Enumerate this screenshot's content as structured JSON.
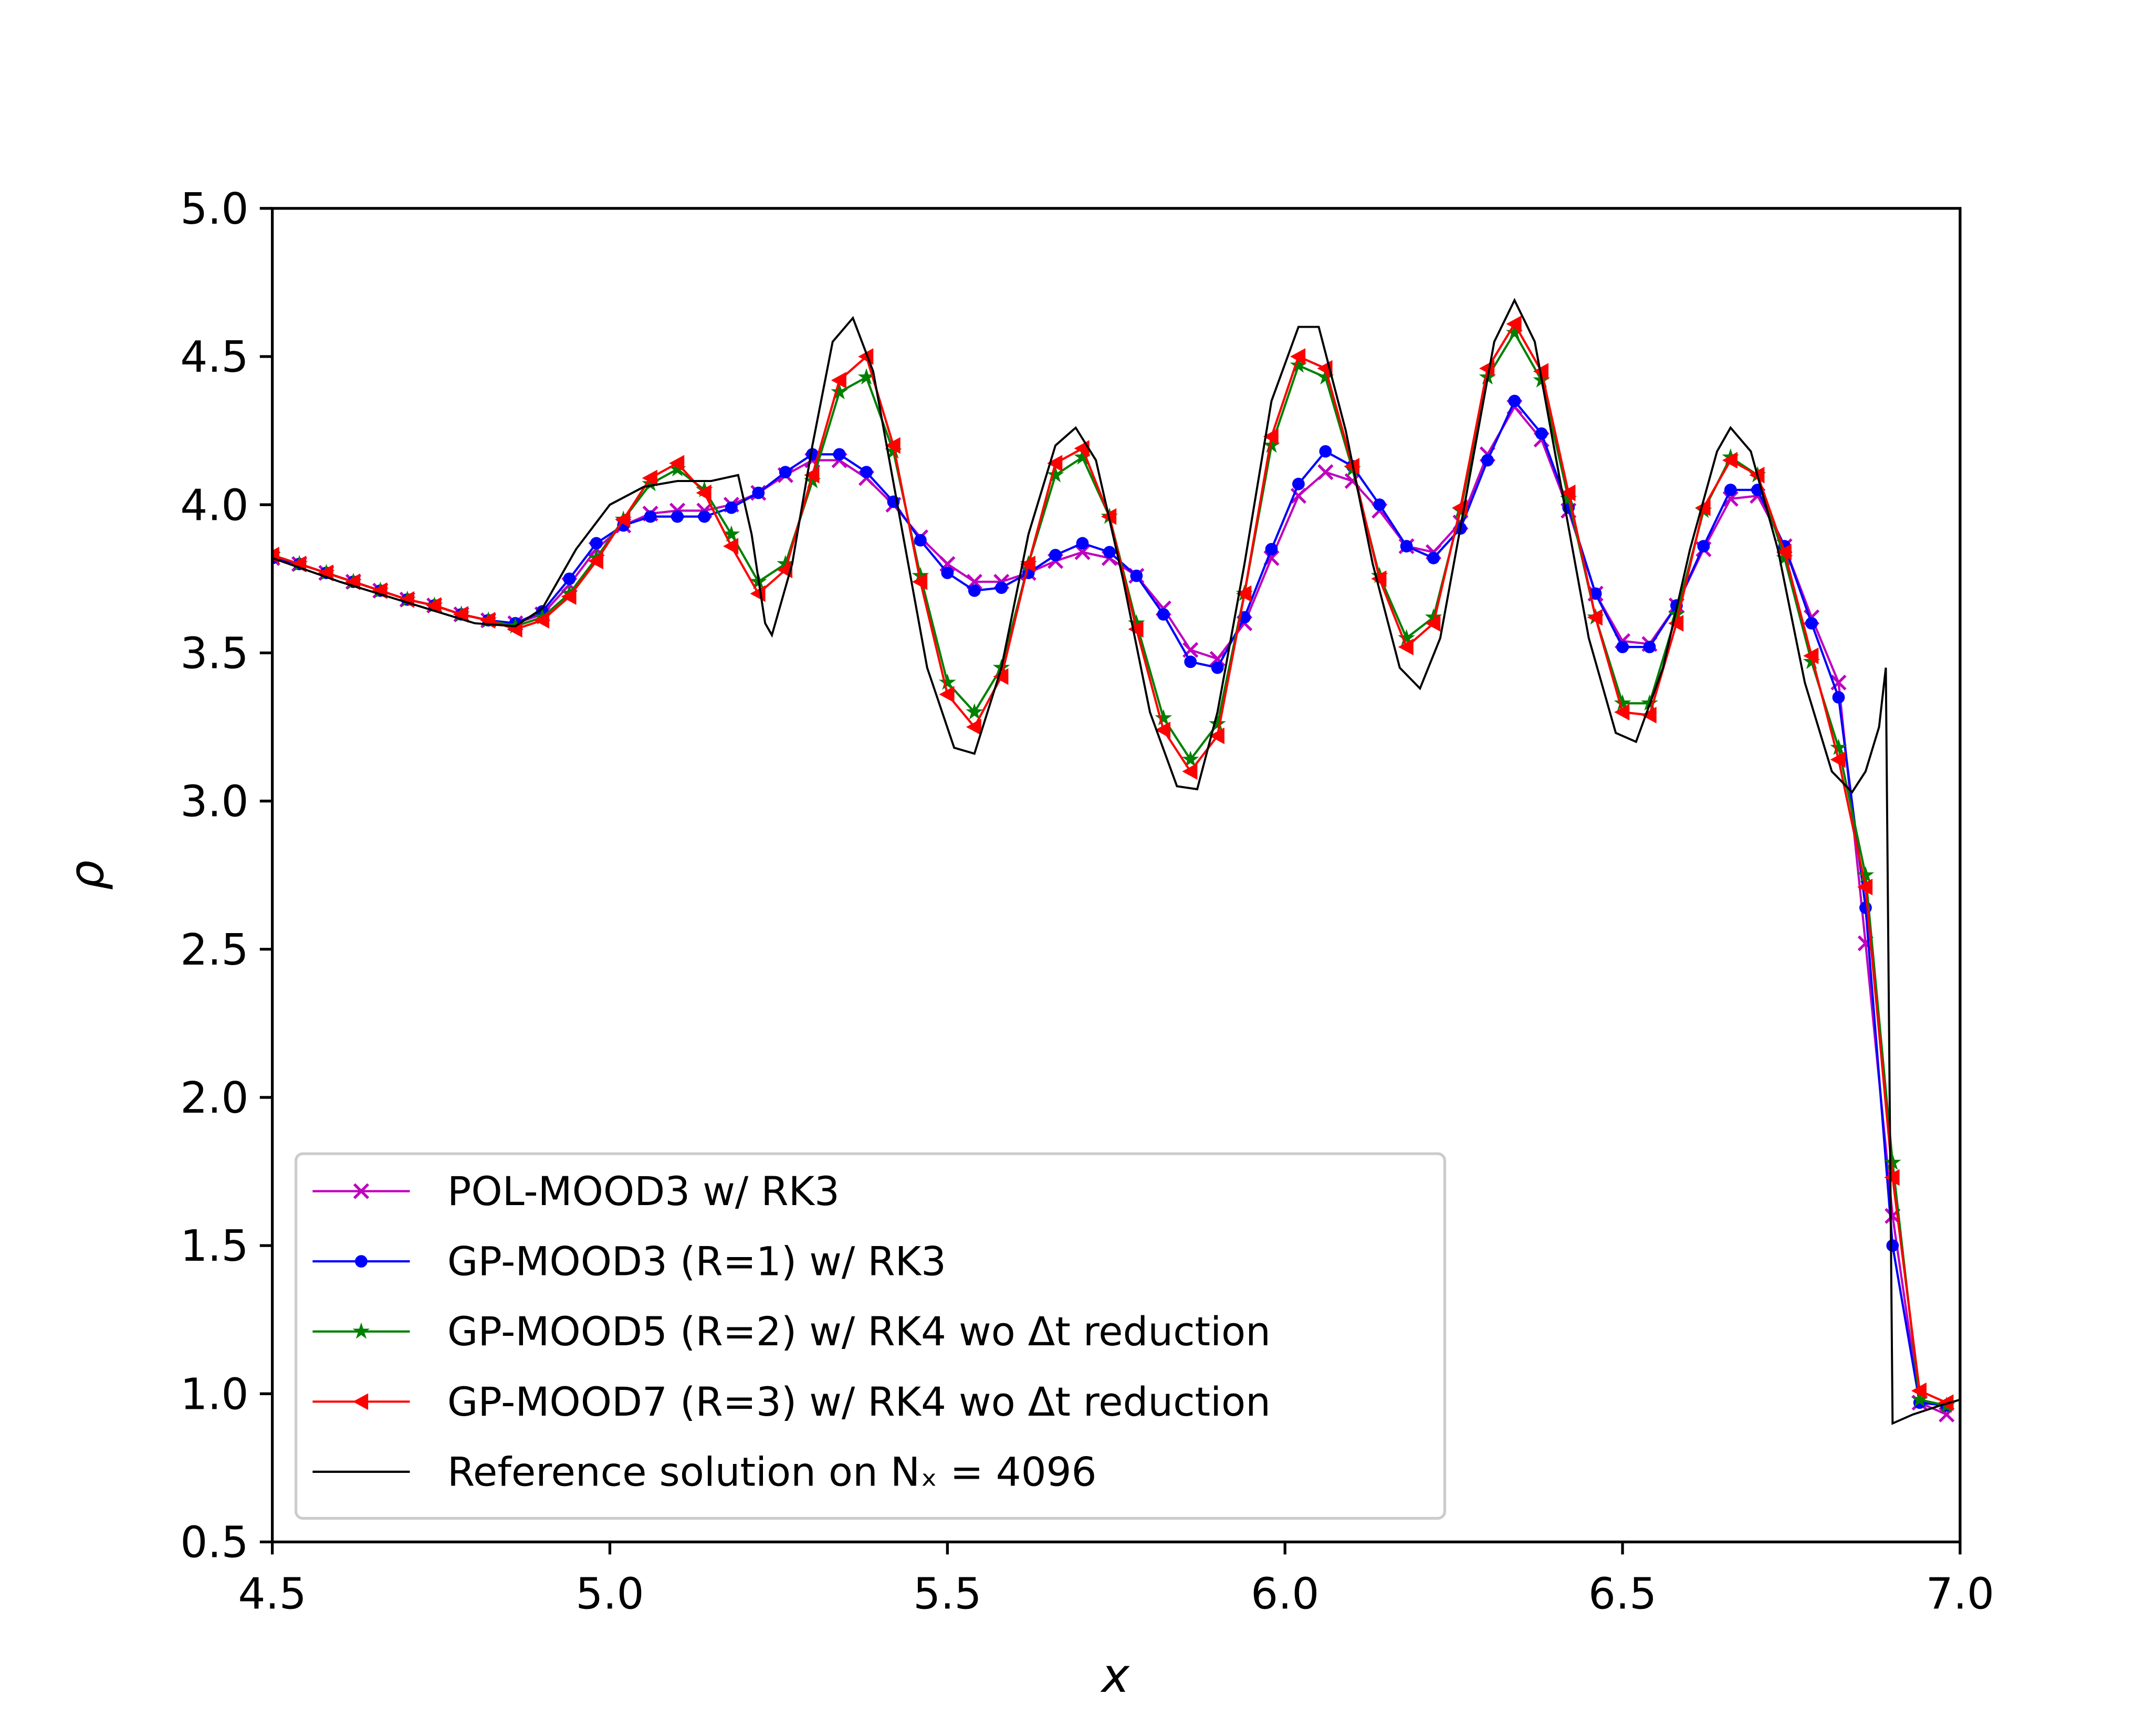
{
  "chart_data": {
    "type": "line",
    "xlabel": "x",
    "ylabel": "ρ",
    "xlim": [
      4.5,
      7.0
    ],
    "ylim": [
      0.5,
      5.0
    ],
    "xticks": [
      4.5,
      {
        "value": 5,
        "label": "5.0"
      },
      5.5,
      {
        "value": 6,
        "label": "6.0"
      },
      6.5,
      {
        "value": 7,
        "label": "7.0"
      }
    ],
    "yticks": [
      0.5,
      {
        "value": 1,
        "label": "1.0"
      },
      1.5,
      {
        "value": 2,
        "label": "2.0"
      },
      2.5,
      {
        "value": 3,
        "label": "3.0"
      },
      3.5,
      {
        "value": 4,
        "label": "4.0"
      },
      4.5,
      {
        "value": 5,
        "label": "5.0"
      }
    ],
    "legend": "lower left",
    "x": [
      4.5,
      4.54,
      4.58,
      4.62,
      4.66,
      4.7,
      4.74,
      4.78,
      4.82,
      4.86,
      4.9,
      4.94,
      4.98,
      5.02,
      5.06,
      5.1,
      5.14,
      5.18,
      5.22,
      5.26,
      5.3,
      5.34,
      5.38,
      5.42,
      5.46,
      5.5,
      5.54,
      5.58,
      5.62,
      5.66,
      5.7,
      5.74,
      5.78,
      5.82,
      5.86,
      5.9,
      5.94,
      5.98,
      6.02,
      6.06,
      6.1,
      6.14,
      6.18,
      6.22,
      6.26,
      6.3,
      6.34,
      6.38,
      6.42,
      6.46,
      6.5,
      6.54,
      6.58,
      6.62,
      6.66,
      6.7,
      6.74,
      6.78,
      6.82,
      6.86,
      6.9,
      6.94,
      6.98
    ],
    "series": [
      {
        "name": "POL-MOOD3 w/ RK3",
        "color": "#bf00bf",
        "marker": "x",
        "values": [
          3.82,
          3.8,
          3.77,
          3.74,
          3.71,
          3.68,
          3.66,
          3.63,
          3.61,
          3.6,
          3.63,
          3.73,
          3.85,
          3.93,
          3.97,
          3.98,
          3.98,
          4.0,
          4.04,
          4.1,
          4.15,
          4.15,
          4.09,
          4.0,
          3.89,
          3.8,
          3.74,
          3.74,
          3.77,
          3.81,
          3.84,
          3.82,
          3.76,
          3.65,
          3.51,
          3.48,
          3.6,
          3.82,
          4.03,
          4.11,
          4.08,
          3.98,
          3.86,
          3.84,
          3.94,
          4.17,
          4.33,
          4.22,
          3.98,
          3.7,
          3.54,
          3.53,
          3.66,
          3.85,
          4.02,
          4.03,
          3.86,
          3.62,
          3.4,
          2.52,
          1.6,
          0.97,
          0.93
        ]
      },
      {
        "name": "GP-MOOD3 (R=1) w/ RK3",
        "color": "#0000ff",
        "marker": "o",
        "values": [
          3.82,
          3.8,
          3.77,
          3.74,
          3.71,
          3.68,
          3.66,
          3.63,
          3.61,
          3.6,
          3.64,
          3.75,
          3.87,
          3.93,
          3.96,
          3.96,
          3.96,
          3.99,
          4.04,
          4.11,
          4.17,
          4.17,
          4.11,
          4.01,
          3.88,
          3.77,
          3.71,
          3.72,
          3.77,
          3.83,
          3.87,
          3.84,
          3.76,
          3.63,
          3.47,
          3.45,
          3.62,
          3.85,
          4.07,
          4.18,
          4.13,
          4.0,
          3.86,
          3.82,
          3.92,
          4.15,
          4.35,
          4.24,
          3.99,
          3.7,
          3.52,
          3.52,
          3.66,
          3.86,
          4.05,
          4.05,
          3.86,
          3.6,
          3.35,
          2.64,
          1.5,
          0.97,
          0.96
        ]
      },
      {
        "name": "GP-MOOD5 (R=2) w/ RK4 wo Δt reduction",
        "color": "#008000",
        "marker": "star",
        "values": [
          3.83,
          3.8,
          3.77,
          3.74,
          3.71,
          3.68,
          3.66,
          3.63,
          3.61,
          3.59,
          3.62,
          3.7,
          3.82,
          3.95,
          4.07,
          4.12,
          4.05,
          3.9,
          3.74,
          3.8,
          4.08,
          4.38,
          4.43,
          4.18,
          3.76,
          3.4,
          3.3,
          3.45,
          3.8,
          4.1,
          4.16,
          3.96,
          3.6,
          3.28,
          3.14,
          3.26,
          3.7,
          4.2,
          4.47,
          4.43,
          4.12,
          3.76,
          3.55,
          3.62,
          3.98,
          4.43,
          4.58,
          4.42,
          4.02,
          3.62,
          3.33,
          3.33,
          3.63,
          3.98,
          4.16,
          4.1,
          3.82,
          3.47,
          3.18,
          2.75,
          1.78,
          0.98,
          0.96
        ]
      },
      {
        "name": "GP-MOOD7 (R=3) w/ RK4 wo Δt reduction",
        "color": "#ff0000",
        "marker": "<",
        "values": [
          3.83,
          3.8,
          3.77,
          3.74,
          3.71,
          3.68,
          3.66,
          3.63,
          3.61,
          3.58,
          3.61,
          3.69,
          3.81,
          3.95,
          4.09,
          4.14,
          4.04,
          3.86,
          3.7,
          3.78,
          4.1,
          4.42,
          4.5,
          4.2,
          3.74,
          3.36,
          3.25,
          3.42,
          3.8,
          4.14,
          4.19,
          3.96,
          3.58,
          3.24,
          3.1,
          3.22,
          3.7,
          4.23,
          4.5,
          4.46,
          4.13,
          3.75,
          3.52,
          3.6,
          3.99,
          4.46,
          4.61,
          4.45,
          4.04,
          3.62,
          3.3,
          3.29,
          3.6,
          3.99,
          4.15,
          4.1,
          3.84,
          3.49,
          3.14,
          2.71,
          1.73,
          1.01,
          0.97
        ]
      },
      {
        "name": "Reference solution on Nₓ = 4096",
        "color": "#000000",
        "marker": "none",
        "x": [
          4.5,
          4.6,
          4.7,
          4.8,
          4.86,
          4.9,
          4.95,
          5.0,
          5.05,
          5.1,
          5.15,
          5.19,
          5.21,
          5.23,
          5.24,
          5.27,
          5.3,
          5.33,
          5.36,
          5.39,
          5.43,
          5.47,
          5.51,
          5.54,
          5.58,
          5.62,
          5.66,
          5.69,
          5.72,
          5.76,
          5.8,
          5.84,
          5.87,
          5.9,
          5.94,
          5.98,
          6.02,
          6.05,
          6.09,
          6.13,
          6.17,
          6.2,
          6.23,
          6.27,
          6.31,
          6.34,
          6.37,
          6.41,
          6.45,
          6.49,
          6.52,
          6.56,
          6.6,
          6.64,
          6.66,
          6.69,
          6.73,
          6.77,
          6.81,
          6.84,
          6.86,
          6.88,
          6.89,
          6.9,
          6.93,
          6.97,
          7.0
        ],
        "values": [
          3.82,
          3.74,
          3.67,
          3.6,
          3.59,
          3.65,
          3.85,
          4.0,
          4.06,
          4.08,
          4.08,
          4.1,
          3.9,
          3.6,
          3.56,
          3.8,
          4.2,
          4.55,
          4.63,
          4.45,
          3.95,
          3.45,
          3.18,
          3.16,
          3.45,
          3.9,
          4.2,
          4.26,
          4.15,
          3.75,
          3.3,
          3.05,
          3.04,
          3.3,
          3.8,
          4.35,
          4.6,
          4.6,
          4.25,
          3.8,
          3.45,
          3.38,
          3.55,
          4.05,
          4.55,
          4.69,
          4.55,
          4.05,
          3.55,
          3.23,
          3.2,
          3.45,
          3.85,
          4.18,
          4.26,
          4.18,
          3.85,
          3.4,
          3.1,
          3.03,
          3.1,
          3.25,
          3.45,
          0.9,
          0.93,
          0.96,
          0.98
        ]
      }
    ]
  }
}
